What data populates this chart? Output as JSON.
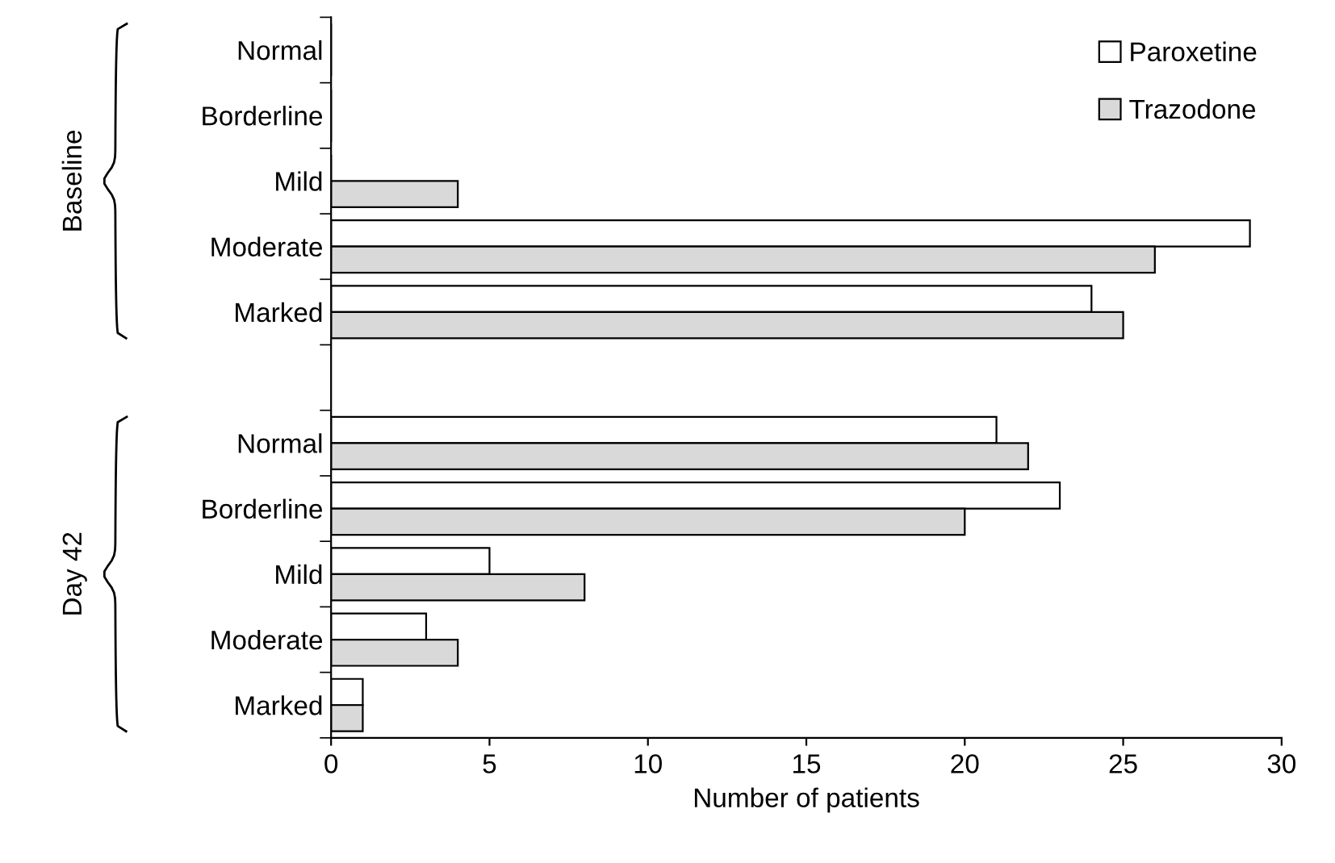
{
  "chart_data": {
    "type": "bar",
    "orientation": "horizontal",
    "xlabel": "Number of patients",
    "categories": [
      "Normal",
      "Borderline",
      "Mild",
      "Moderate",
      "Marked",
      null,
      "Normal",
      "Borderline",
      "Mild",
      "Moderate",
      "Marked"
    ],
    "series": [
      {
        "name": "Paroxetine",
        "color": "#ffffff",
        "values": [
          0,
          0,
          0,
          29,
          24,
          null,
          21,
          23,
          5,
          3,
          1
        ]
      },
      {
        "name": "Trazodone",
        "color": "#d9d9d9",
        "values": [
          0,
          0,
          4,
          26,
          25,
          null,
          22,
          20,
          8,
          4,
          1
        ]
      }
    ],
    "annotations": [
      "Baseline",
      "Day 42"
    ],
    "xlim": [
      0,
      30
    ],
    "xticks": [
      0,
      5,
      10,
      15,
      20,
      25,
      30
    ],
    "grid": false,
    "legend": "top right"
  }
}
